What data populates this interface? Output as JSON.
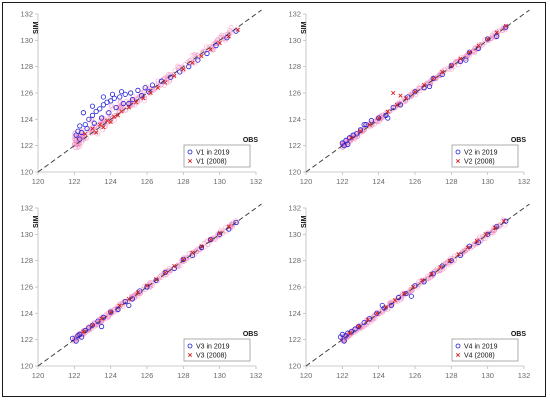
{
  "colors": {
    "blue": "#1f1fd6",
    "red": "#d42020",
    "pink": "#f28cc0",
    "axis": "#bdbdbd",
    "diagonal": "#444444"
  },
  "chart_data": [
    {
      "type": "scatter",
      "panel": "top-left",
      "xlabel": "OBS",
      "ylabel": "SIM",
      "xlim": [
        120,
        132
      ],
      "ylim": [
        120,
        132
      ],
      "xticks": [
        "120",
        "122",
        "124",
        "126",
        "128",
        "130",
        "132"
      ],
      "yticks": [
        "120",
        "122",
        "124",
        "126",
        "128",
        "130",
        "132"
      ],
      "reference_line": "1:1 dashed",
      "legend_position": "bottom-right",
      "series": [
        {
          "name": "V1 in 2019",
          "marker": "circle",
          "color": "#1f1fd6",
          "x": [
            122.1,
            122.2,
            122.3,
            122.4,
            122.6,
            122.8,
            123.0,
            123.2,
            123.4,
            123.6,
            123.8,
            124.0,
            124.2,
            124.5,
            124.8,
            125.1,
            125.5,
            125.9,
            126.3,
            126.8,
            127.3,
            127.8,
            128.3,
            128.8,
            129.3,
            129.8,
            130.4,
            130.9,
            122.3,
            122.7,
            123.1,
            123.5,
            123.9,
            124.3,
            124.7,
            125.2,
            125.7,
            126.1,
            122.5,
            123.0,
            123.6,
            124.1,
            124.6,
            125.0
          ],
          "y": [
            122.8,
            123.1,
            123.5,
            123.0,
            123.6,
            124.0,
            124.3,
            124.6,
            124.8,
            125.1,
            125.3,
            125.4,
            125.6,
            125.7,
            125.9,
            126.0,
            126.2,
            126.4,
            126.6,
            126.9,
            127.2,
            127.6,
            128.0,
            128.5,
            129.0,
            129.6,
            130.2,
            130.7,
            122.5,
            123.3,
            123.7,
            124.1,
            124.5,
            124.9,
            125.2,
            125.5,
            125.8,
            126.1,
            124.5,
            125.0,
            125.7,
            125.9,
            126.1,
            125.2
          ]
        },
        {
          "name": "V1 (2008)",
          "marker": "x",
          "color": "#d42020",
          "x": [
            122.6,
            123.0,
            123.4,
            123.8,
            124.2,
            124.6,
            125.0,
            125.4,
            125.8,
            126.2,
            126.6,
            127.0,
            127.5,
            128.0,
            128.5,
            129.0,
            129.5,
            130.0,
            130.5,
            131.0,
            123.2,
            123.6,
            124.0,
            124.4
          ],
          "y": [
            122.9,
            123.3,
            123.6,
            123.9,
            124.2,
            124.6,
            124.9,
            125.3,
            125.6,
            126.0,
            126.4,
            126.8,
            127.3,
            127.8,
            128.3,
            128.8,
            129.3,
            129.8,
            130.3,
            130.8,
            123.0,
            123.4,
            123.8,
            124.3
          ]
        }
      ]
    },
    {
      "type": "scatter",
      "panel": "top-right",
      "xlabel": "OBS",
      "ylabel": "SIM",
      "xlim": [
        120,
        132
      ],
      "ylim": [
        120,
        132
      ],
      "xticks": [
        "120",
        "122",
        "124",
        "126",
        "128",
        "130",
        "132"
      ],
      "yticks": [
        "120",
        "122",
        "124",
        "126",
        "128",
        "130",
        "132"
      ],
      "reference_line": "1:1 dashed",
      "legend_position": "bottom-right",
      "series": [
        {
          "name": "V2 in 2019",
          "marker": "circle",
          "color": "#1f1fd6",
          "x": [
            122.0,
            122.1,
            122.2,
            122.3,
            122.4,
            122.6,
            122.8,
            123.0,
            123.3,
            123.6,
            124.0,
            124.4,
            124.8,
            125.2,
            125.6,
            126.0,
            126.5,
            127.0,
            127.5,
            128.0,
            128.5,
            129.0,
            129.5,
            130.0,
            130.5,
            131.0,
            123.2,
            124.5,
            126.8,
            128.8
          ],
          "y": [
            122.2,
            122.0,
            122.4,
            122.1,
            122.6,
            122.8,
            122.9,
            123.2,
            123.6,
            123.9,
            124.1,
            124.3,
            124.9,
            125.1,
            125.7,
            126.1,
            126.4,
            127.1,
            127.4,
            128.1,
            128.4,
            129.1,
            129.4,
            130.1,
            130.3,
            131.0,
            123.6,
            124.1,
            126.5,
            128.5
          ]
        },
        {
          "name": "V2 (2008)",
          "marker": "x",
          "color": "#d42020",
          "x": [
            122.5,
            123.0,
            123.5,
            124.0,
            124.5,
            125.0,
            125.5,
            126.0,
            126.5,
            127.0,
            127.5,
            128.0,
            128.5,
            129.0,
            129.5,
            130.0,
            130.5,
            131.0,
            124.8,
            125.2
          ],
          "y": [
            122.6,
            123.1,
            123.6,
            124.1,
            124.6,
            125.1,
            125.6,
            126.1,
            126.6,
            127.1,
            127.6,
            128.1,
            128.6,
            129.1,
            129.6,
            130.1,
            130.6,
            131.1,
            126.0,
            125.8
          ]
        }
      ]
    },
    {
      "type": "scatter",
      "panel": "bottom-left",
      "xlabel": "OBS",
      "ylabel": "SIM",
      "xlim": [
        120,
        132
      ],
      "ylim": [
        120,
        132
      ],
      "xticks": [
        "120",
        "122",
        "124",
        "126",
        "128",
        "130",
        "132"
      ],
      "yticks": [
        "120",
        "122",
        "124",
        "126",
        "128",
        "130",
        "132"
      ],
      "reference_line": "1:1 dashed",
      "legend_position": "bottom-right",
      "series": [
        {
          "name": "V3 in 2019",
          "marker": "circle",
          "color": "#1f1fd6",
          "x": [
            121.9,
            122.1,
            122.2,
            122.3,
            122.4,
            122.6,
            122.8,
            123.0,
            123.3,
            123.6,
            124.0,
            124.4,
            124.8,
            125.2,
            125.6,
            126.0,
            126.5,
            127.0,
            127.5,
            128.0,
            128.5,
            129.0,
            129.5,
            130.0,
            130.5,
            130.9,
            123.5,
            125.0
          ],
          "y": [
            122.1,
            121.9,
            122.3,
            122.4,
            122.2,
            122.7,
            122.9,
            123.1,
            123.4,
            123.7,
            124.1,
            124.3,
            124.9,
            125.1,
            125.7,
            126.0,
            126.5,
            127.1,
            127.4,
            128.1,
            128.4,
            129.0,
            129.6,
            130.0,
            130.4,
            130.9,
            123.0,
            124.6
          ]
        },
        {
          "name": "V3 (2008)",
          "marker": "x",
          "color": "#d42020",
          "x": [
            122.5,
            123.0,
            123.5,
            124.0,
            124.5,
            125.0,
            125.5,
            126.0,
            126.5,
            127.0,
            127.5,
            128.0,
            128.5,
            129.0,
            129.5,
            130.0,
            130.5
          ],
          "y": [
            122.6,
            123.1,
            123.6,
            124.1,
            124.6,
            125.1,
            125.6,
            126.1,
            126.6,
            127.1,
            127.6,
            128.1,
            128.6,
            129.1,
            129.6,
            130.1,
            130.6
          ]
        }
      ]
    },
    {
      "type": "scatter",
      "panel": "bottom-right",
      "xlabel": "OBS",
      "ylabel": "SIM",
      "xlim": [
        120,
        132
      ],
      "ylim": [
        120,
        132
      ],
      "xticks": [
        "120",
        "122",
        "124",
        "126",
        "128",
        "130",
        "132"
      ],
      "yticks": [
        "120",
        "122",
        "124",
        "126",
        "128",
        "130",
        "132"
      ],
      "reference_line": "1:1 dashed",
      "legend_position": "bottom-right",
      "series": [
        {
          "name": "V4 in 2019",
          "marker": "circle",
          "color": "#1f1fd6",
          "x": [
            121.9,
            122.0,
            122.1,
            122.2,
            122.3,
            122.5,
            122.7,
            122.9,
            123.2,
            123.5,
            123.9,
            124.3,
            124.7,
            125.1,
            125.5,
            126.0,
            126.5,
            127.0,
            127.5,
            128.0,
            128.5,
            129.0,
            129.5,
            130.0,
            130.5,
            131.0,
            124.2,
            125.8
          ],
          "y": [
            122.2,
            122.4,
            121.9,
            122.3,
            122.5,
            122.6,
            122.8,
            123.0,
            123.3,
            123.6,
            124.0,
            124.4,
            124.6,
            125.2,
            125.5,
            126.1,
            126.4,
            127.0,
            127.6,
            128.0,
            128.4,
            129.1,
            129.4,
            130.0,
            130.6,
            131.0,
            124.6,
            125.3
          ]
        },
        {
          "name": "V4 (2008)",
          "marker": "x",
          "color": "#d42020",
          "x": [
            122.4,
            122.9,
            123.4,
            123.9,
            124.4,
            124.9,
            125.4,
            125.9,
            126.4,
            126.9,
            127.4,
            127.9,
            128.4,
            128.9,
            129.4,
            129.9,
            130.4,
            130.9
          ],
          "y": [
            122.5,
            123.0,
            123.5,
            124.0,
            124.5,
            125.0,
            125.5,
            126.0,
            126.5,
            127.0,
            127.5,
            128.0,
            128.5,
            129.0,
            129.5,
            130.0,
            130.5,
            131.0
          ]
        }
      ]
    }
  ]
}
